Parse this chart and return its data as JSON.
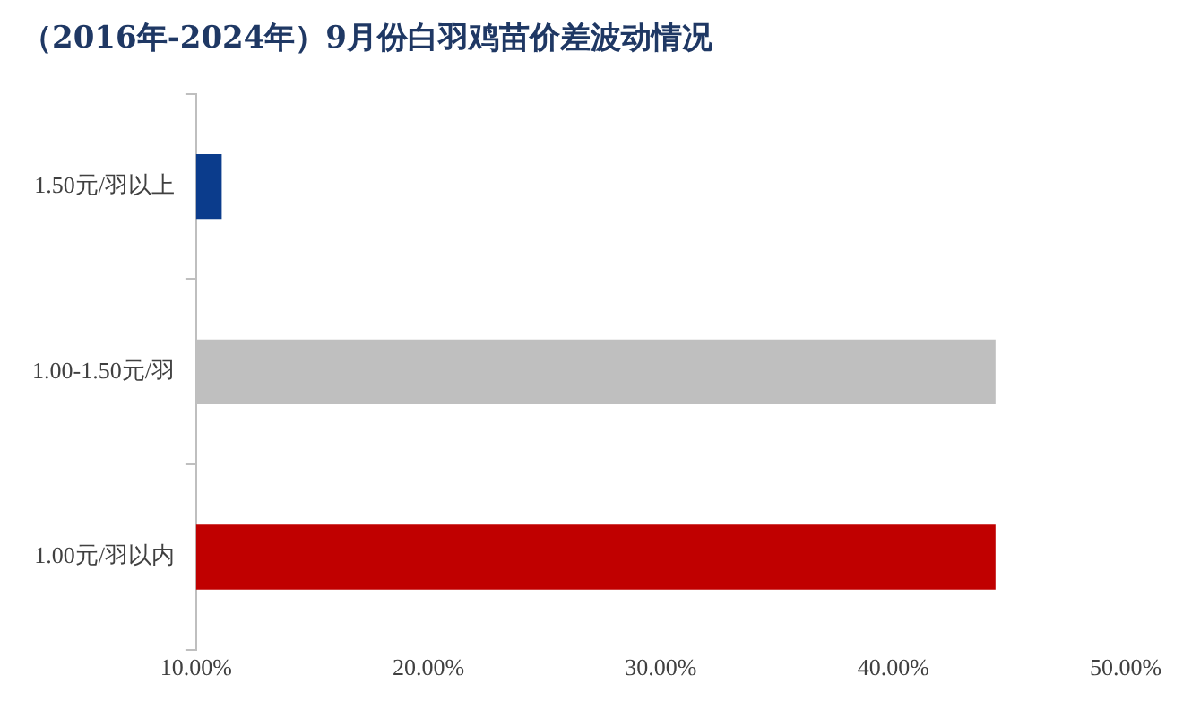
{
  "chart_data": {
    "type": "bar",
    "orientation": "horizontal",
    "title": "（2016年-2024年）9月份白羽鸡苗价差波动情况",
    "categories": [
      "1.50元/羽以上",
      "1.00-1.50元/羽",
      "1.00元/羽以内"
    ],
    "values": [
      11.1,
      44.4,
      44.4
    ],
    "colors": [
      "#0b3c8c",
      "#bfbfbf",
      "#c00000"
    ],
    "xlim": [
      10,
      50
    ],
    "xticks": [
      {
        "value": 10,
        "label": "10.00%"
      },
      {
        "value": 20,
        "label": "20.00%"
      },
      {
        "value": 30,
        "label": "30.00%"
      },
      {
        "value": 40,
        "label": "40.00%"
      },
      {
        "value": 50,
        "label": "50.00%"
      }
    ],
    "grid": false,
    "legend": false
  }
}
